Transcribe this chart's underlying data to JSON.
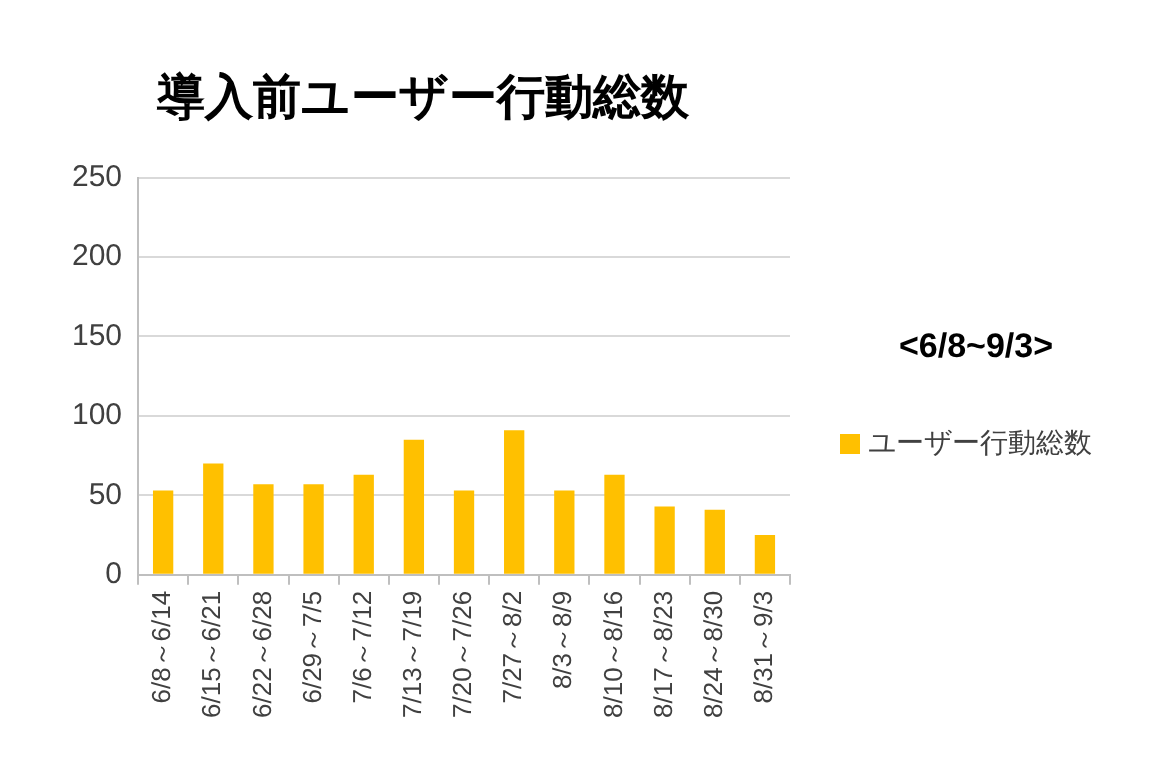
{
  "chart_data": {
    "type": "bar",
    "title": "導入前ユーザー行動総数",
    "categories": [
      "6/8～6/14",
      "6/15～6/21",
      "6/22～6/28",
      "6/29～7/5",
      "7/6～7/12",
      "7/13～7/19",
      "7/20～7/26",
      "7/27～8/2",
      "8/3～8/9",
      "8/10～8/16",
      "8/17～8/23",
      "8/24～8/30",
      "8/31～9/3"
    ],
    "series": [
      {
        "name": "ユーザー行動総数",
        "color": "#ffc000",
        "values": [
          53,
          70,
          57,
          57,
          63,
          85,
          53,
          91,
          53,
          63,
          43,
          41,
          25
        ]
      }
    ],
    "ylim": [
      0,
      250
    ],
    "yticks": [
      0,
      50,
      100,
      150,
      200,
      250
    ],
    "grid": "y",
    "legend": "right",
    "annotations": [
      "<6/8~9/3>"
    ]
  }
}
